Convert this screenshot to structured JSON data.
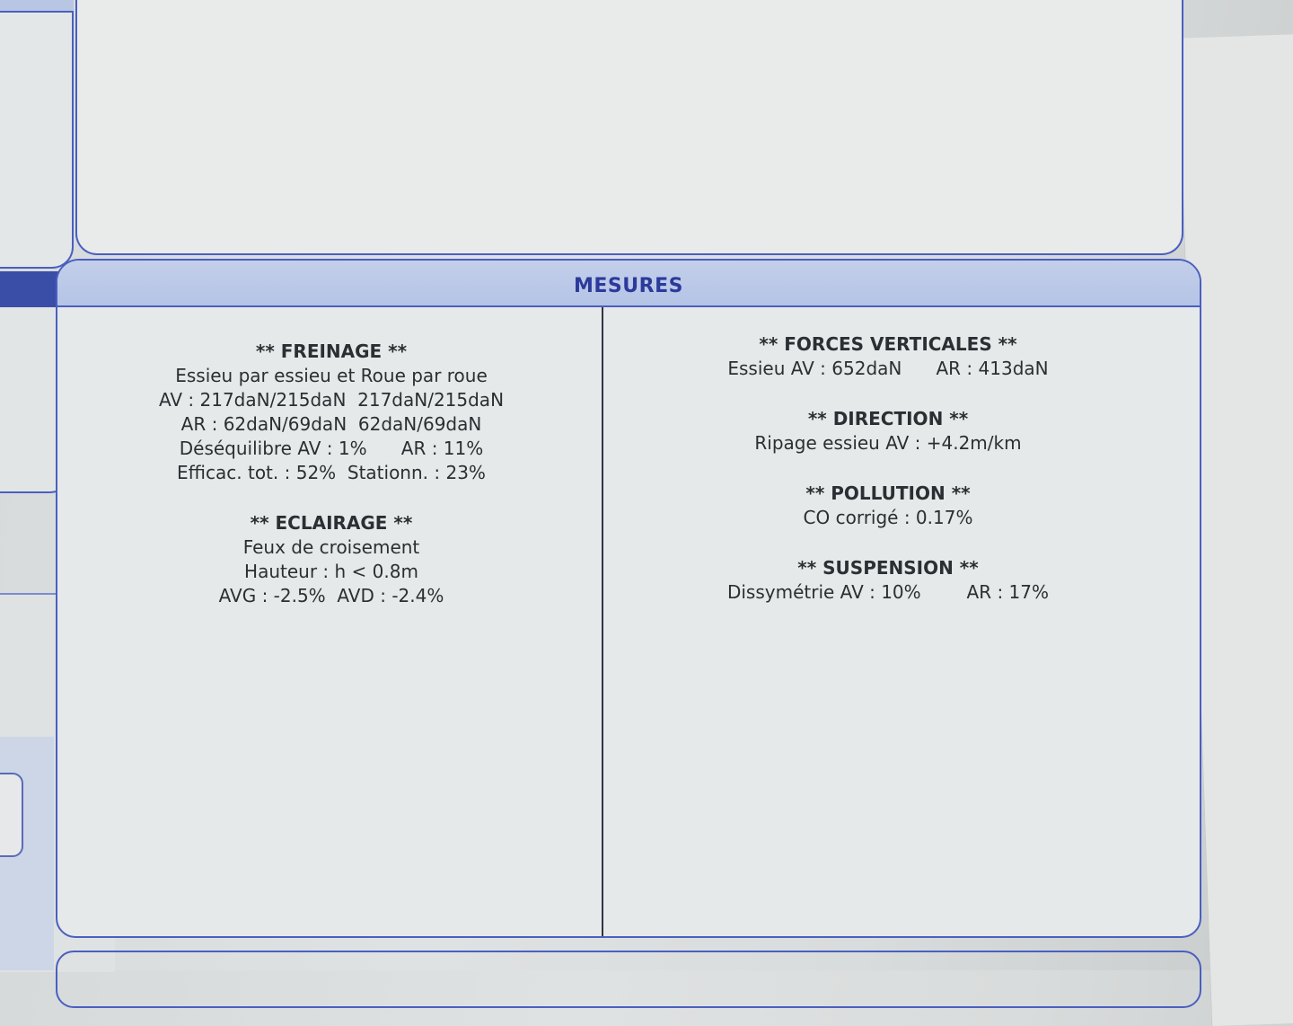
{
  "section_title": "MESURES",
  "left_column": [
    {
      "heading": "** FREINAGE **",
      "lines": [
        "Essieu par essieu et Roue par roue",
        "AV : 217daN/215daN  217daN/215daN",
        "AR : 62daN/69daN  62daN/69daN",
        "Déséquilibre AV : 1%      AR : 11%",
        "Efficac. tot. : 52%  Stationn. : 23%"
      ]
    },
    {
      "heading": "** ECLAIRAGE **",
      "lines": [
        "Feux de croisement",
        "Hauteur : h < 0.8m",
        "AVG : -2.5%  AVD : -2.4%"
      ]
    }
  ],
  "right_column": [
    {
      "heading": "** FORCES VERTICALES **",
      "lines": [
        "Essieu AV : 652daN      AR : 413daN"
      ]
    },
    {
      "heading": "** DIRECTION **",
      "lines": [
        "Ripage essieu AV : +4.2m/km"
      ]
    },
    {
      "heading": "** POLLUTION **",
      "lines": [
        "CO corrigé : 0.17%"
      ]
    },
    {
      "heading": "** SUSPENSION **",
      "lines": [
        "Dissymétrie AV : 10%        AR : 17%"
      ]
    }
  ],
  "colors": {
    "frame_blue": "#4a5fc0",
    "title_blue": "#2c3a9c",
    "header_band": "#c3cfea"
  }
}
